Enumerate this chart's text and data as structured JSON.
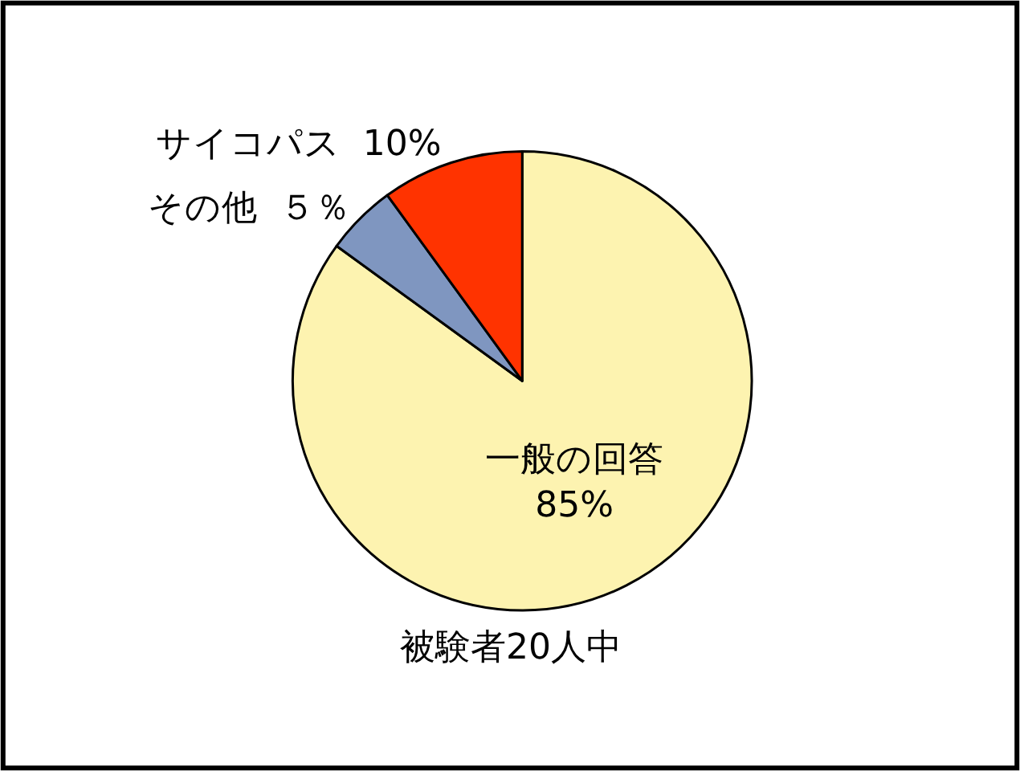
{
  "chart_data": {
    "type": "pie",
    "categories": [
      "一般の回答",
      "その他",
      "サイコパス"
    ],
    "values": [
      85,
      5,
      10
    ],
    "value_labels": [
      "85%",
      "５％",
      "10%"
    ],
    "colors": [
      "#fdf3b0",
      "#7f96c0",
      "#ff3300"
    ],
    "annotations": [
      "被験者20人中"
    ]
  }
}
